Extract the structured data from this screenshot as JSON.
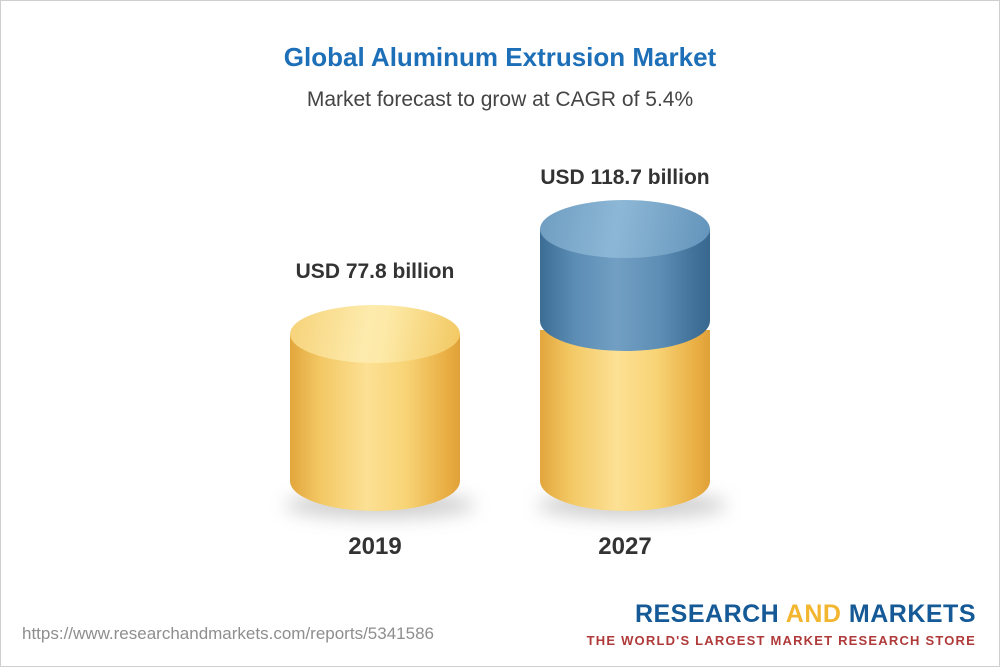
{
  "header": {
    "title": "Global Aluminum Extrusion Market",
    "subtitle": "Market forecast to grow at CAGR of 5.4%"
  },
  "chart_data": {
    "type": "bar",
    "variant": "3d-cylinder",
    "categories": [
      "2019",
      "2027"
    ],
    "values": [
      77.8,
      118.7
    ],
    "value_labels": [
      "USD 77.8 billion",
      "USD 118.7 billion"
    ],
    "unit": "USD billion",
    "title": "Global Aluminum Extrusion Market",
    "subtitle": "Market forecast to grow at CAGR of 5.4%",
    "legend": "none",
    "grid": false,
    "colors": {
      "bar_2019": "#f2c351",
      "bar_2027_base": "#f2c351",
      "bar_2027_growth": "#4a7ba6",
      "title_accent": "#1d6fb8"
    }
  },
  "footer": {
    "url": "https://www.researchandmarkets.com/reports/5341586",
    "logo": {
      "research": "RESEARCH",
      "and": "AND",
      "markets": "MARKETS",
      "tagline": "THE WORLD'S LARGEST MARKET RESEARCH STORE"
    }
  }
}
